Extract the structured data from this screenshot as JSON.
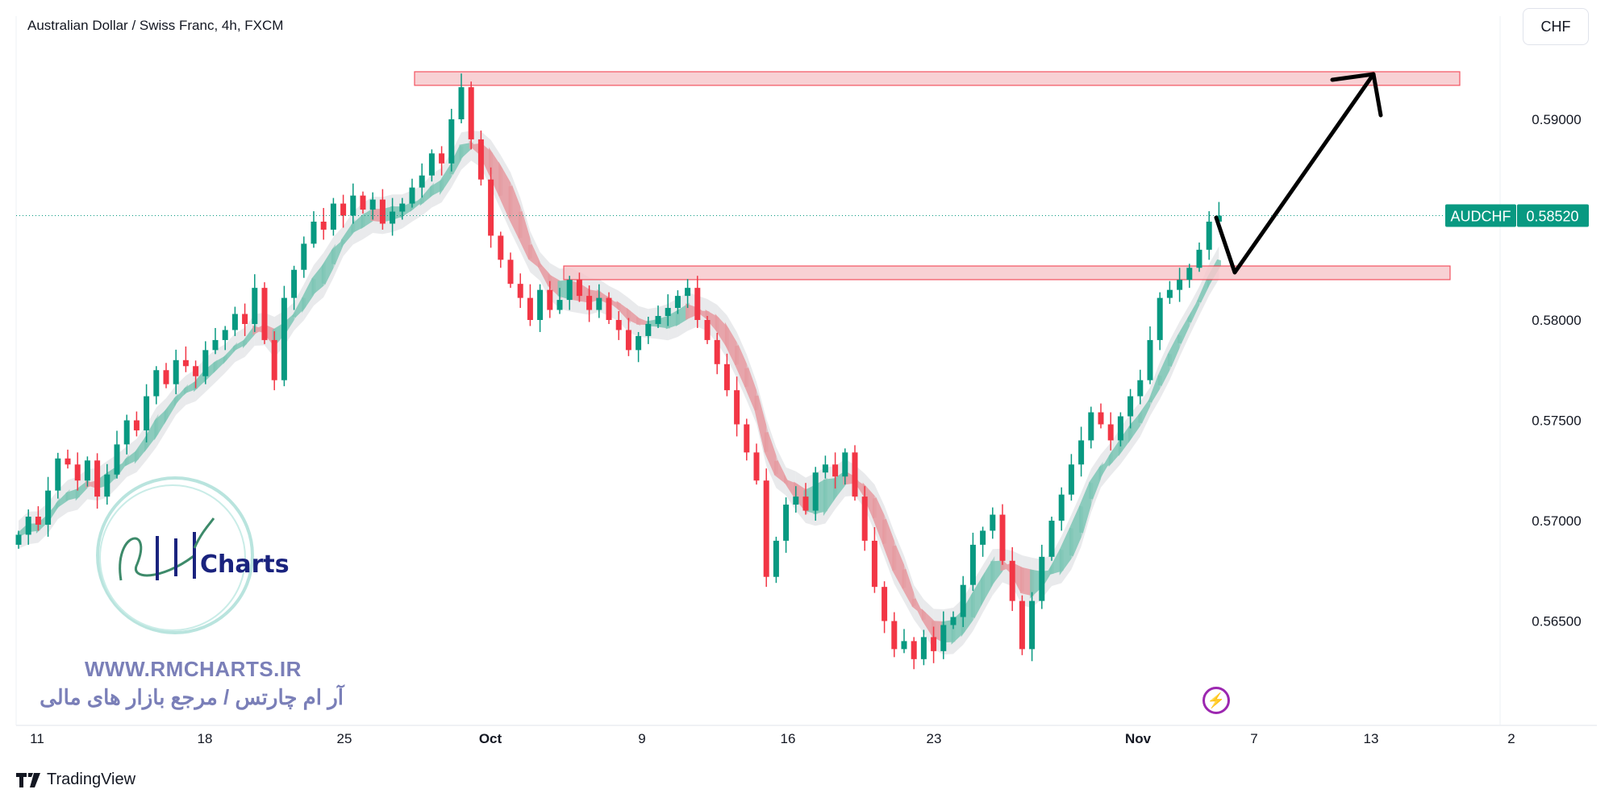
{
  "header": {
    "title": "Australian Dollar / Swiss Franc, 4h, FXCM",
    "currency_button": "CHF"
  },
  "footer": {
    "brand": "TradingView"
  },
  "watermark": {
    "url": "WWW.RMCHARTS.IR",
    "tagline": "آر ام چارتس / مرجع بازار های مالی",
    "logo_text": "RM Charts"
  },
  "colors": {
    "up": "#089981",
    "down": "#f23645",
    "zone_fill": "#f7c9cd",
    "zone_stroke": "#f23645",
    "label_bg": "#089981",
    "watermark": "#7a7fb8",
    "bolt": "#9c27b0"
  },
  "icons": {
    "lightning": "lightning-icon",
    "tv_logo": "tradingview-logo-icon"
  },
  "chart_data": {
    "type": "candlestick",
    "symbol": "AUDCHF",
    "last_price": "0.58520",
    "y_ticks": [
      "0.59000",
      "0.58000",
      "0.57500",
      "0.57000",
      "0.56500"
    ],
    "ylim": [
      0.56,
      0.595
    ],
    "x_ticks": [
      "11",
      "18",
      "25",
      "Oct",
      "9",
      "16",
      "23",
      "Nov",
      "7",
      "13",
      "2"
    ],
    "grid": false,
    "first_open": 0.5688,
    "closes": [
      0.5693,
      0.5702,
      0.5698,
      0.5715,
      0.5731,
      0.5728,
      0.572,
      0.573,
      0.5712,
      0.5723,
      0.5738,
      0.575,
      0.5745,
      0.5762,
      0.5775,
      0.5768,
      0.578,
      0.5777,
      0.5772,
      0.5785,
      0.579,
      0.5795,
      0.5803,
      0.5798,
      0.5816,
      0.579,
      0.577,
      0.5811,
      0.5825,
      0.5838,
      0.5849,
      0.5845,
      0.5858,
      0.5852,
      0.5862,
      0.5855,
      0.586,
      0.5848,
      0.5854,
      0.5858,
      0.5866,
      0.5872,
      0.5883,
      0.5878,
      0.59,
      0.5916,
      0.589,
      0.587,
      0.5842,
      0.583,
      0.5818,
      0.5811,
      0.58,
      0.5815,
      0.5805,
      0.581,
      0.582,
      0.5812,
      0.5805,
      0.5811,
      0.58,
      0.5795,
      0.5785,
      0.5792,
      0.5798,
      0.5802,
      0.5806,
      0.5812,
      0.5816,
      0.58,
      0.579,
      0.5778,
      0.5765,
      0.5748,
      0.5734,
      0.572,
      0.5672,
      0.569,
      0.5708,
      0.5712,
      0.5705,
      0.5724,
      0.5728,
      0.5722,
      0.5734,
      0.5712,
      0.569,
      0.5667,
      0.565,
      0.5636,
      0.564,
      0.5631,
      0.5642,
      0.5635,
      0.5648,
      0.5652,
      0.5668,
      0.5688,
      0.5695,
      0.5703,
      0.568,
      0.566,
      0.5636,
      0.566,
      0.5682,
      0.57,
      0.5713,
      0.5728,
      0.574,
      0.5754,
      0.5748,
      0.574,
      0.5752,
      0.5762,
      0.577,
      0.579,
      0.5811,
      0.5815,
      0.582,
      0.5826,
      0.5835,
      0.5849,
      0.5852
    ],
    "zones": [
      {
        "name": "resistance-zone",
        "top": 0.59237,
        "bottom": 0.59169
      },
      {
        "name": "support-zone",
        "top": 0.58269,
        "bottom": 0.58201
      }
    ],
    "projection": "pullback to support zone then rise to resistance zone"
  }
}
